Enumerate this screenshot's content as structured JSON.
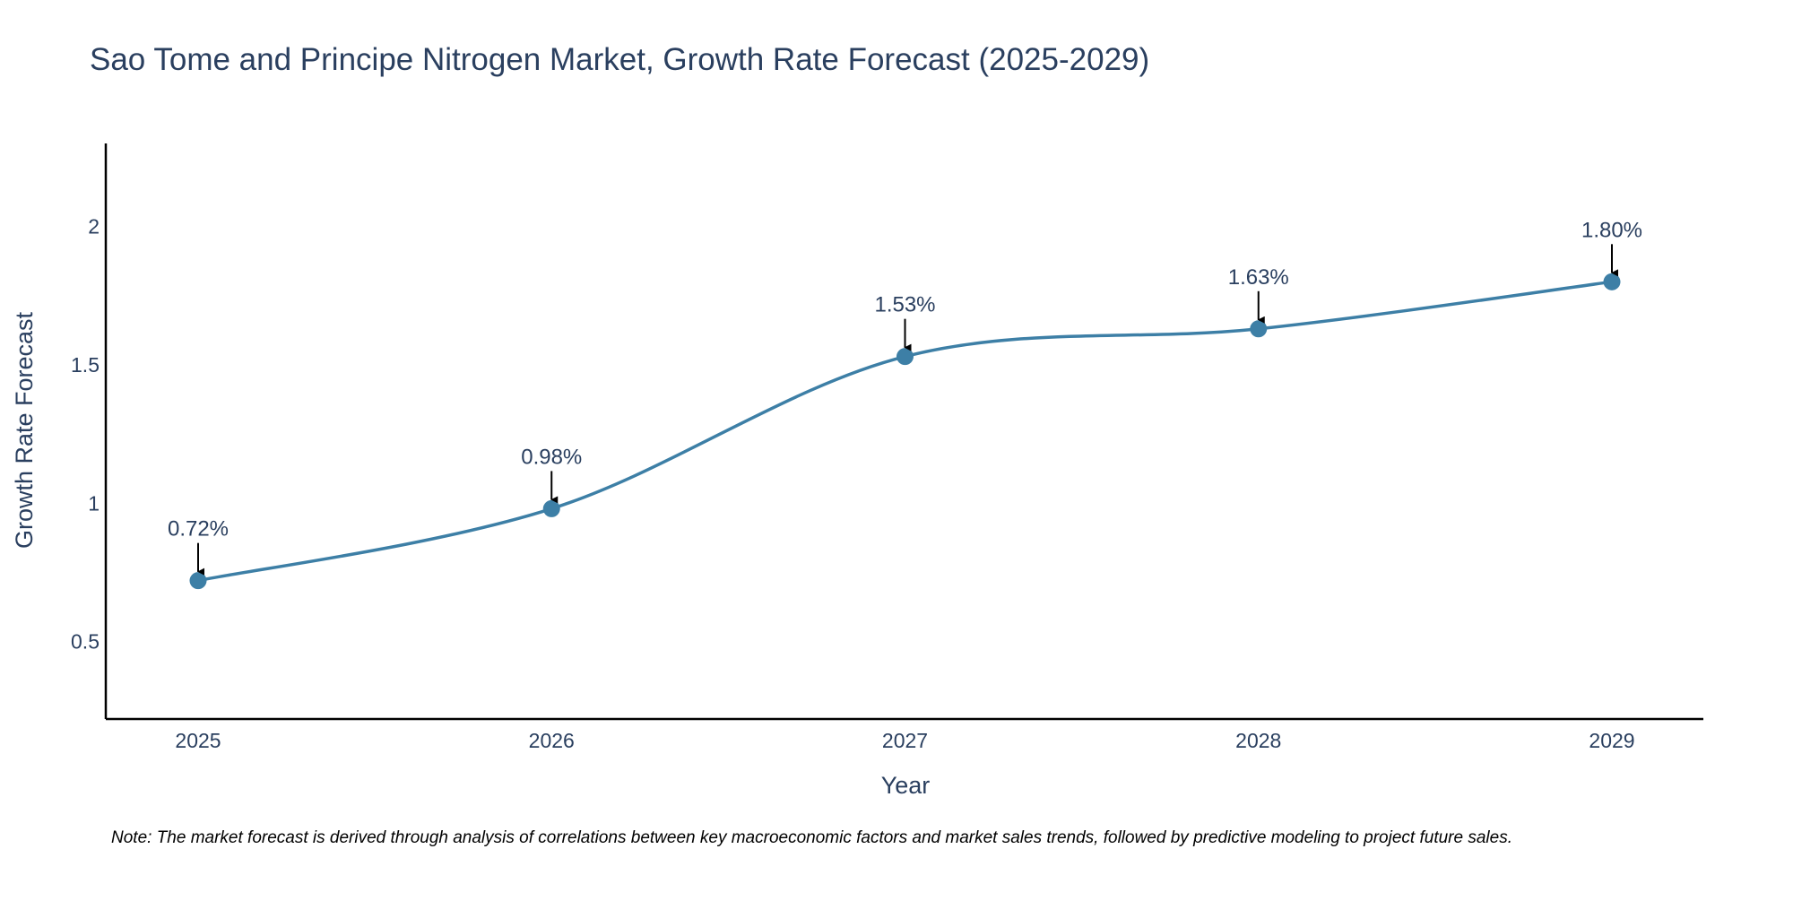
{
  "colors": {
    "line": "#3d7fa6",
    "marker": "#3d7fa6",
    "text": "#2a3f5f",
    "axis": "#000000",
    "arrow": "#000000"
  },
  "chart_data": {
    "type": "line",
    "title": "Sao Tome and Principe Nitrogen Market, Growth Rate Forecast (2025-2029)",
    "xlabel": "Year",
    "ylabel": "Growth Rate Forecast",
    "categories": [
      "2025",
      "2026",
      "2027",
      "2028",
      "2029"
    ],
    "values": [
      0.72,
      0.98,
      1.53,
      1.63,
      1.8
    ],
    "data_labels": [
      "0.72%",
      "0.98%",
      "1.53%",
      "1.63%",
      "1.80%"
    ],
    "y_ticks": [
      0.5,
      1,
      1.5,
      2
    ],
    "y_tick_labels": [
      "0.5",
      "1",
      "1.5",
      "2"
    ],
    "ylim": [
      0.22,
      2.3
    ],
    "grid": false,
    "legend": "none",
    "line_shape": "spline",
    "note": "Note: The market forecast is derived through analysis of correlations between key macroeconomic factors and market sales trends, followed by predictive modeling to project future sales."
  }
}
